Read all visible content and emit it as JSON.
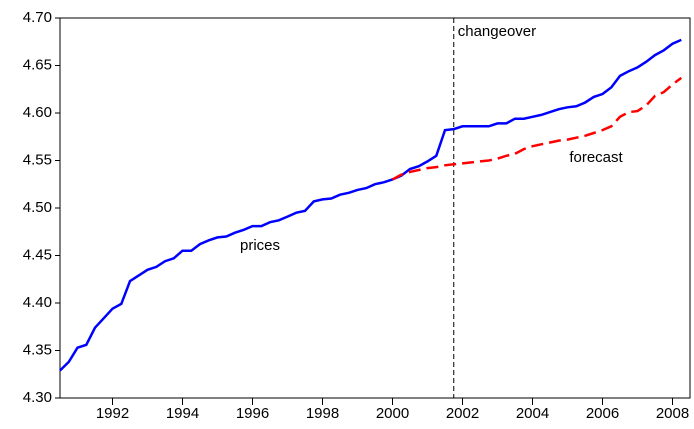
{
  "chart_data": {
    "type": "line",
    "x": [
      1990.5,
      1990.75,
      1991,
      1991.25,
      1991.5,
      1991.75,
      1992,
      1992.25,
      1992.5,
      1992.75,
      1993,
      1993.25,
      1993.5,
      1993.75,
      1994,
      1994.25,
      1994.5,
      1994.75,
      1995,
      1995.25,
      1995.5,
      1995.75,
      1996,
      1996.25,
      1996.5,
      1996.75,
      1997,
      1997.25,
      1997.5,
      1997.75,
      1998,
      1998.25,
      1998.5,
      1998.75,
      1999,
      1999.25,
      1999.5,
      1999.75,
      2000,
      2000.25,
      2000.5,
      2000.75,
      2001,
      2001.25,
      2001.5,
      2001.75,
      2002,
      2002.25,
      2002.5,
      2002.75,
      2003,
      2003.25,
      2003.5,
      2003.75,
      2004,
      2004.25,
      2004.5,
      2004.75,
      2005,
      2005.25,
      2005.5,
      2005.75,
      2006,
      2006.25,
      2006.5,
      2006.75,
      2007,
      2007.25,
      2007.5,
      2007.75,
      2008,
      2008.25
    ],
    "series": [
      {
        "name": "prices",
        "color": "#0000ff",
        "dashed": false,
        "values": [
          4.329,
          4.338,
          4.353,
          4.356,
          4.374,
          4.384,
          4.394,
          4.399,
          4.423,
          4.429,
          4.435,
          4.438,
          4.444,
          4.447,
          4.455,
          4.455,
          4.462,
          4.466,
          4.469,
          4.47,
          4.474,
          4.477,
          4.481,
          4.481,
          4.485,
          4.487,
          4.491,
          4.495,
          4.497,
          4.507,
          4.509,
          4.51,
          4.514,
          4.516,
          4.519,
          4.521,
          4.525,
          4.527,
          4.53,
          4.534,
          4.541,
          4.544,
          4.549,
          4.555,
          4.582,
          4.583,
          4.586,
          4.586,
          4.586,
          4.586,
          4.589,
          4.589,
          4.594,
          4.594,
          4.596,
          4.598,
          4.601,
          4.604,
          4.606,
          4.607,
          4.611,
          4.617,
          4.62,
          4.627,
          4.639,
          4.644,
          4.648,
          4.654,
          4.661,
          4.666,
          4.673,
          4.677
        ]
      },
      {
        "name": "forecast",
        "color": "#ff0000",
        "dashed": true,
        "values": [
          null,
          null,
          null,
          null,
          null,
          null,
          null,
          null,
          null,
          null,
          null,
          null,
          null,
          null,
          null,
          null,
          null,
          null,
          null,
          null,
          null,
          null,
          null,
          null,
          null,
          null,
          null,
          null,
          null,
          null,
          null,
          null,
          null,
          null,
          null,
          null,
          null,
          null,
          4.53,
          4.535,
          4.538,
          4.54,
          4.542,
          4.543,
          4.545,
          4.546,
          4.547,
          4.548,
          4.549,
          4.55,
          4.552,
          4.555,
          4.557,
          4.562,
          4.565,
          4.567,
          4.569,
          4.571,
          4.572,
          4.574,
          4.576,
          4.579,
          4.582,
          4.586,
          4.596,
          4.601,
          4.602,
          4.608,
          4.618,
          4.622,
          4.63,
          4.637
        ]
      }
    ],
    "vline": 2001.75,
    "vline_label": "changeover",
    "xlim": [
      1990.5,
      2008.5
    ],
    "xticks": [
      1992,
      1994,
      1996,
      1998,
      2000,
      2002,
      2004,
      2006,
      2008
    ],
    "ylim": [
      4.3,
      4.7
    ],
    "yticks": [
      {
        "value": 4.3,
        "label": "4.30"
      },
      4.35,
      {
        "value": 4.4,
        "label": "4.40"
      },
      4.45,
      {
        "value": 4.5,
        "label": "4.50"
      },
      4.55,
      {
        "value": 4.6,
        "label": "4.60"
      },
      4.65,
      {
        "value": 4.7,
        "label": "4.70"
      }
    ]
  }
}
